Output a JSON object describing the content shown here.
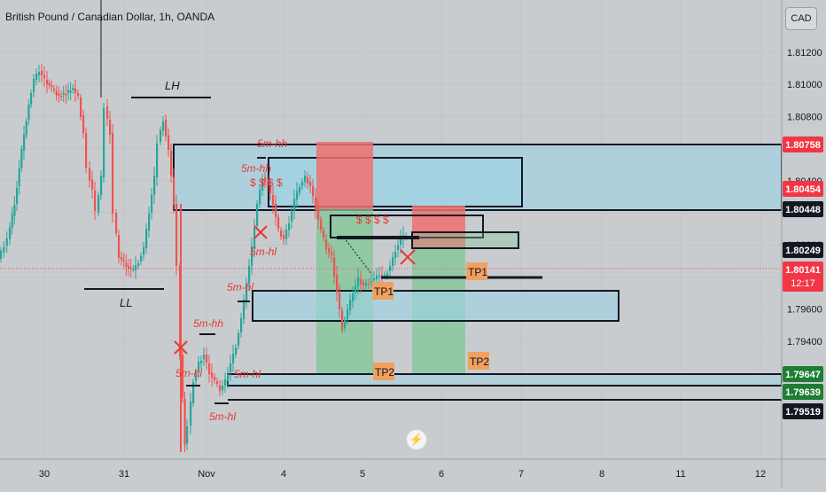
{
  "header": {
    "title": "British Pound / Canadian Dollar, 1h, OANDA",
    "currency_label": "CAD"
  },
  "chart_data": {
    "type": "candlestick",
    "ylim": [
      1.7935,
      1.8128
    ],
    "price_ticks": [
      "1.81200",
      "1.81000",
      "1.80800",
      "1.80600",
      "1.80400",
      "1.80200",
      "1.80000",
      "1.79800",
      "1.79600",
      "1.79400"
    ],
    "x_ticks": [
      "30",
      "31",
      "Nov",
      "4",
      "5",
      "6",
      "7",
      "8",
      "11",
      "12"
    ],
    "price_tags": [
      {
        "label": "1.80758",
        "color": "#f23645",
        "text_color": "#ffffff"
      },
      {
        "label": "1.80454",
        "color": "#f23645",
        "text_color": "#ffffff"
      },
      {
        "label": "1.80448",
        "color": "#131722",
        "text_color": "#ffffff"
      },
      {
        "label": "1.80249",
        "color": "#131722",
        "text_color": "#ffffff"
      },
      {
        "label": "1.80141",
        "sub": "12:17",
        "color": "#f23645",
        "text_color": "#ffffff"
      },
      {
        "label": "1.79647",
        "color": "#1e7d32",
        "text_color": "#ffffff"
      },
      {
        "label": "1.79639",
        "color": "#1e7d32",
        "text_color": "#ffffff"
      },
      {
        "label": "1.79519",
        "color": "#131722",
        "text_color": "#ffffff"
      }
    ],
    "annotations": {
      "lh": "LH",
      "ll": "LL",
      "labels_5m": [
        "5m-hh",
        "5m-hh",
        "5m-hl",
        "5m-hl",
        "5m-hh",
        "5m-hl",
        "5m-hl",
        "5m-hl"
      ],
      "dollar_1": "$ $ $ $",
      "dollar_2": "$ $ $ $",
      "tp": [
        "TP1",
        "TP1",
        "TP2",
        "TP2"
      ]
    },
    "colors": {
      "up": "#26a69a",
      "down": "#ef5350",
      "zone_blue": "#9fd3e3",
      "zone_green": "#7fc795",
      "zone_red": "#f07070",
      "annotation": "#e53935",
      "tp_box": "#f0a060"
    }
  }
}
